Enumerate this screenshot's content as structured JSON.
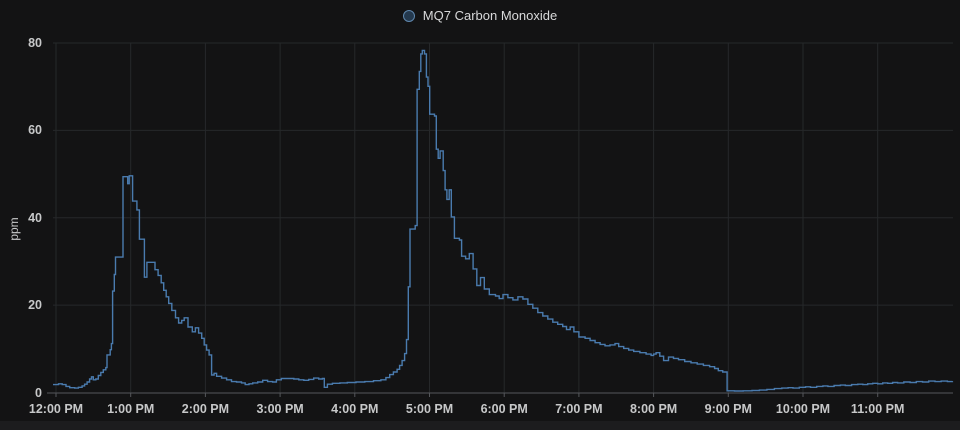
{
  "legend": {
    "series_label": "MQ7 Carbon Monoxide"
  },
  "colors": {
    "background": "#131314",
    "line": "#4a7bae",
    "legend_marker_fill": "#24394e",
    "legend_marker_stroke": "#5f87ad",
    "grid": "#26282a",
    "axis": "#55575b",
    "tick_text": "#c7c8c9",
    "title_text": "#d8d9da"
  },
  "chart_data": {
    "type": "line",
    "step": true,
    "title": "MQ7 Carbon Monoxide",
    "xlabel": "",
    "ylabel": "ppm",
    "ylim": [
      0,
      80
    ],
    "y_ticks": [
      0,
      20,
      40,
      60,
      80
    ],
    "x_tick_labels": [
      "12:00 PM",
      "1:00 PM",
      "2:00 PM",
      "3:00 PM",
      "4:00 PM",
      "5:00 PM",
      "6:00 PM",
      "7:00 PM",
      "8:00 PM",
      "9:00 PM",
      "10:00 PM",
      "11:00 PM"
    ],
    "x_unit": "minutes after 12:00 PM",
    "x_range_minutes": [
      0,
      720
    ],
    "grid": true,
    "legend_position": "top-center",
    "series": [
      {
        "name": "MQ7 Carbon Monoxide",
        "color": "#4a7bae",
        "points": [
          [
            -2.4,
            1.8
          ],
          [
            2,
            2.0
          ],
          [
            5,
            1.8
          ],
          [
            8,
            1.4
          ],
          [
            11,
            1.1
          ],
          [
            15,
            1.0
          ],
          [
            18,
            1.2
          ],
          [
            21,
            1.5
          ],
          [
            23,
            1.9
          ],
          [
            25,
            2.4
          ],
          [
            27,
            3.1
          ],
          [
            28.5,
            3.6
          ],
          [
            30,
            2.9
          ],
          [
            32,
            3.1
          ],
          [
            34,
            3.9
          ],
          [
            36,
            4.6
          ],
          [
            38,
            5.2
          ],
          [
            40,
            5.7
          ],
          [
            41,
            8.6
          ],
          [
            43.5,
            9.8
          ],
          [
            44.5,
            11.2
          ],
          [
            45.5,
            23.2
          ],
          [
            46.8,
            27.0
          ],
          [
            47.8,
            31.0
          ],
          [
            53.8,
            49.4
          ],
          [
            57.6,
            47.8
          ],
          [
            58.8,
            49.6
          ],
          [
            61.5,
            43.8
          ],
          [
            65,
            41.8
          ],
          [
            67,
            35.1
          ],
          [
            71,
            26.4
          ],
          [
            73,
            29.8
          ],
          [
            79.5,
            28.1
          ],
          [
            82,
            26.8
          ],
          [
            84.5,
            25.1
          ],
          [
            86.5,
            23.4
          ],
          [
            88.5,
            21.9
          ],
          [
            90.5,
            20.4
          ],
          [
            93,
            18.8
          ],
          [
            96,
            17.1
          ],
          [
            98.5,
            15.9
          ],
          [
            101,
            16.5
          ],
          [
            103,
            17.1
          ],
          [
            106,
            15.0
          ],
          [
            109.5,
            13.9
          ],
          [
            112,
            14.8
          ],
          [
            114.5,
            13.6
          ],
          [
            117,
            12.4
          ],
          [
            119,
            10.9
          ],
          [
            121,
            9.7
          ],
          [
            123,
            8.6
          ],
          [
            125,
            4.0
          ],
          [
            127,
            4.4
          ],
          [
            129,
            3.7
          ],
          [
            133,
            3.3
          ],
          [
            137,
            2.9
          ],
          [
            141,
            2.5
          ],
          [
            145,
            2.4
          ],
          [
            149,
            2.2
          ],
          [
            152,
            1.8
          ],
          [
            155,
            2.0
          ],
          [
            158,
            2.2
          ],
          [
            162,
            2.4
          ],
          [
            166,
            2.8
          ],
          [
            170,
            2.5
          ],
          [
            174,
            2.4
          ],
          [
            177,
            2.9
          ],
          [
            181,
            3.2
          ],
          [
            186,
            3.2
          ],
          [
            191,
            3.1
          ],
          [
            195,
            2.9
          ],
          [
            199,
            2.8
          ],
          [
            203,
            3.0
          ],
          [
            207,
            3.3
          ],
          [
            211,
            3.1
          ],
          [
            214,
            3.2
          ],
          [
            215.5,
            1.2
          ],
          [
            218,
            1.9
          ],
          [
            222,
            2.1
          ],
          [
            228,
            2.2
          ],
          [
            234,
            2.3
          ],
          [
            241,
            2.4
          ],
          [
            248,
            2.5
          ],
          [
            255,
            2.7
          ],
          [
            261,
            2.9
          ],
          [
            265,
            3.4
          ],
          [
            268,
            4.1
          ],
          [
            271,
            4.7
          ],
          [
            274,
            5.3
          ],
          [
            276,
            6.2
          ],
          [
            278,
            7.3
          ],
          [
            280,
            8.9
          ],
          [
            281.5,
            12.1
          ],
          [
            283,
            24.2
          ],
          [
            284.3,
            37.4
          ],
          [
            288.5,
            38.2
          ],
          [
            290,
            69.4
          ],
          [
            291.8,
            73.5
          ],
          [
            293,
            77.5
          ],
          [
            294.2,
            78.3
          ],
          [
            296,
            77.5
          ],
          [
            297.5,
            72.2
          ],
          [
            298.8,
            70.1
          ],
          [
            300.2,
            63.7
          ],
          [
            304,
            63.3
          ],
          [
            305.5,
            55.7
          ],
          [
            307,
            53.6
          ],
          [
            308.5,
            55.3
          ],
          [
            311,
            50.8
          ],
          [
            312.5,
            46.4
          ],
          [
            314,
            44.2
          ],
          [
            315.8,
            46.4
          ],
          [
            317.5,
            40.2
          ],
          [
            320,
            35.3
          ],
          [
            324,
            34.9
          ],
          [
            325.8,
            31.2
          ],
          [
            329,
            30.6
          ],
          [
            332,
            31.8
          ],
          [
            335,
            28.3
          ],
          [
            338,
            24.5
          ],
          [
            341,
            26.3
          ],
          [
            344,
            23.7
          ],
          [
            348,
            22.4
          ],
          [
            353,
            22.1
          ],
          [
            356,
            21.5
          ],
          [
            359,
            22.4
          ],
          [
            363,
            21.7
          ],
          [
            367,
            21.2
          ],
          [
            371,
            21.9
          ],
          [
            375,
            21.4
          ],
          [
            379,
            20.2
          ],
          [
            383,
            19.3
          ],
          [
            387,
            18.3
          ],
          [
            391,
            17.5
          ],
          [
            395,
            16.8
          ],
          [
            399,
            16.1
          ],
          [
            403,
            15.6
          ],
          [
            407,
            15.1
          ],
          [
            410,
            14.4
          ],
          [
            413,
            15.0
          ],
          [
            416,
            13.9
          ],
          [
            420,
            12.7
          ],
          [
            425,
            12.4
          ],
          [
            429,
            11.9
          ],
          [
            433,
            11.4
          ],
          [
            437,
            11.0
          ],
          [
            441,
            10.7
          ],
          [
            445,
            10.9
          ],
          [
            449,
            11.2
          ],
          [
            452,
            10.5
          ],
          [
            456,
            10.1
          ],
          [
            460,
            9.7
          ],
          [
            464,
            9.4
          ],
          [
            469,
            9.1
          ],
          [
            474,
            8.8
          ],
          [
            478,
            8.5
          ],
          [
            480,
            8.8
          ],
          [
            482,
            9.1
          ],
          [
            485,
            8.3
          ],
          [
            488,
            7.3
          ],
          [
            492,
            8.1
          ],
          [
            496,
            7.8
          ],
          [
            500,
            7.5
          ],
          [
            505,
            7.1
          ],
          [
            510,
            6.8
          ],
          [
            515,
            6.5
          ],
          [
            520,
            6.2
          ],
          [
            525,
            5.9
          ],
          [
            529,
            5.5
          ],
          [
            532,
            5.0
          ],
          [
            535.5,
            4.7
          ],
          [
            539,
            0.4
          ],
          [
            545,
            0.35
          ],
          [
            552,
            0.4
          ],
          [
            559,
            0.45
          ],
          [
            565,
            0.55
          ],
          [
            571,
            0.7
          ],
          [
            577,
            0.9
          ],
          [
            583,
            1.0
          ],
          [
            588,
            1.1
          ],
          [
            592,
            1.0
          ],
          [
            597,
            1.2
          ],
          [
            602,
            1.3
          ],
          [
            606,
            1.2
          ],
          [
            611,
            1.4
          ],
          [
            616,
            1.5
          ],
          [
            620,
            1.4
          ],
          [
            625,
            1.6
          ],
          [
            630,
            1.7
          ],
          [
            634,
            1.6
          ],
          [
            639,
            1.8
          ],
          [
            644,
            1.9
          ],
          [
            648,
            1.8
          ],
          [
            652,
            2.0
          ],
          [
            656,
            2.1
          ],
          [
            660,
            2.0
          ],
          [
            664,
            2.2
          ],
          [
            668,
            2.1
          ],
          [
            672,
            2.3
          ],
          [
            676,
            2.2
          ],
          [
            681,
            2.4
          ],
          [
            686,
            2.3
          ],
          [
            691,
            2.5
          ],
          [
            696,
            2.4
          ],
          [
            701,
            2.6
          ],
          [
            706,
            2.5
          ],
          [
            711,
            2.6
          ],
          [
            716,
            2.5
          ],
          [
            720,
            2.6
          ]
        ]
      }
    ]
  }
}
